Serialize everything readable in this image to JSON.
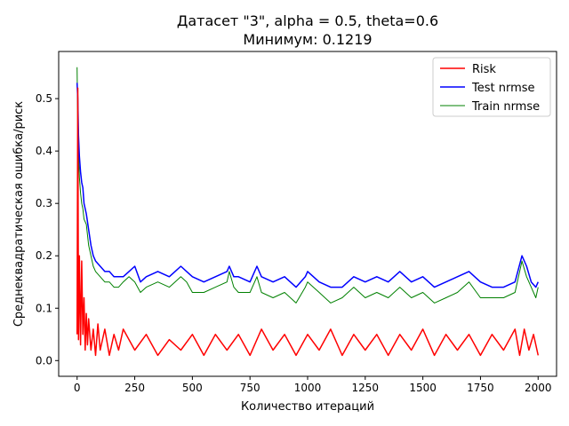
{
  "chart_data": {
    "type": "line",
    "title": "Датасет \"3\", alpha = 0.5, theta=0.6",
    "subtitle": "Минимум: 0.1219",
    "xlabel": "Количество итераций",
    "ylabel": "Среднеквадратическая ошибка/риск",
    "xlim": [
      -80,
      2080
    ],
    "ylim": [
      -0.03,
      0.59
    ],
    "xticks": [
      0,
      250,
      500,
      750,
      1000,
      1250,
      1500,
      1750,
      2000
    ],
    "yticks": [
      0.0,
      0.1,
      0.2,
      0.3,
      0.4,
      0.5
    ],
    "xtick_labels": [
      "0",
      "250",
      "500",
      "750",
      "1000",
      "1250",
      "1500",
      "1750",
      "2000"
    ],
    "ytick_labels": [
      "0.0",
      "0.1",
      "0.2",
      "0.3",
      "0.4",
      "0.5"
    ],
    "grid": false,
    "legend_position": "top-right",
    "series": [
      {
        "name": "Risk",
        "color": "#ff0000",
        "x": [
          0,
          3,
          6,
          10,
          15,
          20,
          25,
          30,
          35,
          40,
          45,
          50,
          60,
          70,
          80,
          90,
          100,
          120,
          140,
          160,
          180,
          200,
          250,
          300,
          350,
          400,
          450,
          500,
          550,
          600,
          650,
          700,
          750,
          800,
          850,
          900,
          950,
          1000,
          1050,
          1100,
          1150,
          1200,
          1250,
          1300,
          1350,
          1400,
          1450,
          1500,
          1550,
          1600,
          1650,
          1700,
          1750,
          1800,
          1850,
          1900,
          1920,
          1940,
          1960,
          1980,
          2000
        ],
        "values": [
          0.05,
          0.52,
          0.04,
          0.2,
          0.03,
          0.19,
          0.05,
          0.12,
          0.02,
          0.09,
          0.03,
          0.08,
          0.02,
          0.06,
          0.01,
          0.07,
          0.02,
          0.06,
          0.01,
          0.05,
          0.02,
          0.06,
          0.02,
          0.05,
          0.01,
          0.04,
          0.02,
          0.05,
          0.01,
          0.05,
          0.02,
          0.05,
          0.01,
          0.06,
          0.02,
          0.05,
          0.01,
          0.05,
          0.02,
          0.06,
          0.01,
          0.05,
          0.02,
          0.05,
          0.01,
          0.05,
          0.02,
          0.06,
          0.01,
          0.05,
          0.02,
          0.05,
          0.01,
          0.05,
          0.02,
          0.06,
          0.01,
          0.06,
          0.02,
          0.05,
          0.01
        ]
      },
      {
        "name": "Test nrmse",
        "color": "#0000ff",
        "x": [
          0,
          3,
          6,
          10,
          15,
          20,
          25,
          30,
          40,
          50,
          60,
          70,
          80,
          100,
          120,
          140,
          160,
          180,
          200,
          225,
          250,
          275,
          300,
          350,
          400,
          425,
          450,
          475,
          500,
          550,
          600,
          650,
          660,
          680,
          700,
          750,
          780,
          800,
          850,
          900,
          950,
          990,
          1000,
          1050,
          1100,
          1150,
          1200,
          1250,
          1300,
          1350,
          1400,
          1450,
          1500,
          1550,
          1600,
          1650,
          1700,
          1750,
          1800,
          1850,
          1900,
          1930,
          1950,
          1970,
          1990,
          2000
        ],
        "values": [
          0.53,
          0.5,
          0.43,
          0.39,
          0.36,
          0.34,
          0.33,
          0.3,
          0.28,
          0.25,
          0.22,
          0.2,
          0.19,
          0.18,
          0.17,
          0.17,
          0.16,
          0.16,
          0.16,
          0.17,
          0.18,
          0.15,
          0.16,
          0.17,
          0.16,
          0.17,
          0.18,
          0.17,
          0.16,
          0.15,
          0.16,
          0.17,
          0.18,
          0.16,
          0.16,
          0.15,
          0.18,
          0.16,
          0.15,
          0.16,
          0.14,
          0.16,
          0.17,
          0.15,
          0.14,
          0.14,
          0.16,
          0.15,
          0.16,
          0.15,
          0.17,
          0.15,
          0.16,
          0.14,
          0.15,
          0.16,
          0.17,
          0.15,
          0.14,
          0.14,
          0.15,
          0.2,
          0.18,
          0.15,
          0.14,
          0.15
        ]
      },
      {
        "name": "Train nrmse",
        "color": "#008000",
        "x": [
          0,
          3,
          6,
          10,
          15,
          20,
          25,
          30,
          40,
          50,
          60,
          70,
          80,
          100,
          120,
          140,
          160,
          180,
          200,
          225,
          250,
          275,
          300,
          350,
          400,
          425,
          450,
          475,
          500,
          550,
          600,
          650,
          660,
          680,
          700,
          750,
          780,
          800,
          850,
          900,
          950,
          990,
          1000,
          1050,
          1100,
          1150,
          1200,
          1250,
          1300,
          1350,
          1400,
          1450,
          1500,
          1550,
          1600,
          1650,
          1700,
          1750,
          1800,
          1850,
          1900,
          1930,
          1950,
          1970,
          1990,
          2000
        ],
        "values": [
          0.56,
          0.44,
          0.4,
          0.35,
          0.32,
          0.3,
          0.29,
          0.27,
          0.26,
          0.22,
          0.2,
          0.18,
          0.17,
          0.16,
          0.15,
          0.15,
          0.14,
          0.14,
          0.15,
          0.16,
          0.15,
          0.13,
          0.14,
          0.15,
          0.14,
          0.15,
          0.16,
          0.15,
          0.13,
          0.13,
          0.14,
          0.15,
          0.17,
          0.14,
          0.13,
          0.13,
          0.16,
          0.13,
          0.12,
          0.13,
          0.11,
          0.14,
          0.15,
          0.13,
          0.11,
          0.12,
          0.14,
          0.12,
          0.13,
          0.12,
          0.14,
          0.12,
          0.13,
          0.11,
          0.12,
          0.13,
          0.15,
          0.12,
          0.12,
          0.12,
          0.13,
          0.19,
          0.16,
          0.14,
          0.12,
          0.14
        ]
      }
    ]
  }
}
